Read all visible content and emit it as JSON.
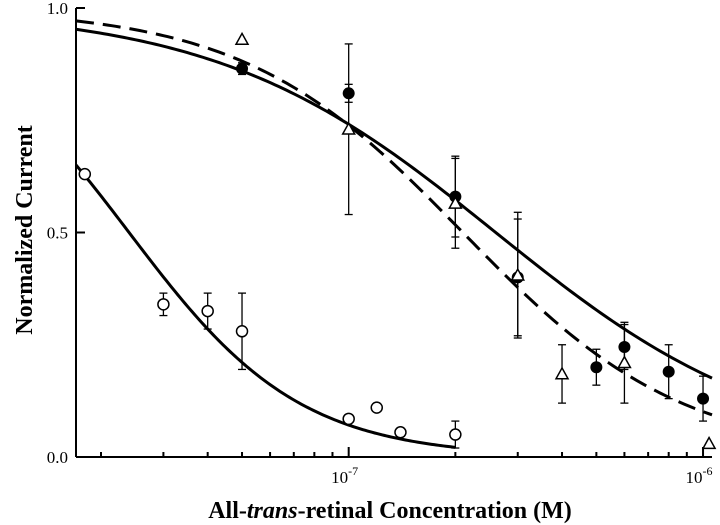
{
  "chart_data": {
    "type": "scatter",
    "x_scale": "log",
    "xlim": [
      1.7e-08,
      1.06e-06
    ],
    "ylim": [
      0,
      1.0
    ],
    "grid": false,
    "ylabel": "Normalized Current",
    "xlabel_parts": [
      "All-",
      "trans",
      "-retinal Concentration (M)"
    ],
    "x_ticks": [
      {
        "value": 1e-07,
        "base": "10",
        "exp": "-7"
      },
      {
        "value": 1e-06,
        "base": "10",
        "exp": "-6"
      }
    ],
    "y_ticks": [
      {
        "value": 0.0,
        "label": "0.0"
      },
      {
        "value": 0.5,
        "label": "0.5"
      },
      {
        "value": 1.0,
        "label": "1.0"
      }
    ],
    "series": [
      {
        "marker": "filled-circle",
        "points": [
          {
            "x": 5e-08,
            "y": 0.865,
            "err": 0.013
          },
          {
            "x": 1e-07,
            "y": 0.81,
            "err": 0.02
          },
          {
            "x": 2e-07,
            "y": 0.58,
            "err": 0.09
          },
          {
            "x": 3e-07,
            "y": 0.4,
            "err": 0.13
          },
          {
            "x": 5e-07,
            "y": 0.2,
            "err": 0.04
          },
          {
            "x": 6e-07,
            "y": 0.245,
            "err": 0.05
          },
          {
            "x": 8e-07,
            "y": 0.19,
            "err": 0.06
          },
          {
            "x": 1e-06,
            "y": 0.13,
            "err": 0.05
          }
        ],
        "fit": {
          "style": "solid",
          "top": 1.0,
          "bottom": 0.0,
          "ec50": 2.6e-07,
          "hill": 1.1,
          "x_from": 1.7e-08,
          "x_to": 1.06e-06
        }
      },
      {
        "marker": "open-triangle",
        "points": [
          {
            "x": 5e-08,
            "y": 0.93,
            "err": 0.0
          },
          {
            "x": 1e-07,
            "y": 0.73,
            "err": 0.19
          },
          {
            "x": 2e-07,
            "y": 0.565,
            "err": 0.1
          },
          {
            "x": 3e-07,
            "y": 0.405,
            "err": 0.14
          },
          {
            "x": 4e-07,
            "y": 0.185,
            "err": 0.065
          },
          {
            "x": 6e-07,
            "y": 0.21,
            "err": 0.09
          },
          {
            "x": 1.04e-06,
            "y": 0.03,
            "err": 0.0
          }
        ],
        "fit": {
          "style": "dashed",
          "top": 1.0,
          "bottom": 0.0,
          "ec50": 2.1e-07,
          "hill": 1.4,
          "x_from": 1.7e-08,
          "x_to": 1.06e-06
        }
      },
      {
        "marker": "open-circle",
        "points": [
          {
            "x": 1.8e-08,
            "y": 0.63,
            "err": 0.0
          },
          {
            "x": 3e-08,
            "y": 0.34,
            "err": 0.025
          },
          {
            "x": 4e-08,
            "y": 0.325,
            "err": 0.04
          },
          {
            "x": 5e-08,
            "y": 0.28,
            "err": 0.085
          },
          {
            "x": 1e-07,
            "y": 0.085,
            "err": 0.0
          },
          {
            "x": 1.2e-07,
            "y": 0.11,
            "err": 0.0
          },
          {
            "x": 1.4e-07,
            "y": 0.055,
            "err": 0.0
          },
          {
            "x": 2e-07,
            "y": 0.05,
            "err": 0.03
          }
        ],
        "fit": {
          "style": "solid",
          "top": 1.0,
          "bottom": 0.0,
          "ec50": 2.4e-08,
          "hill": 1.8,
          "x_from": 1.7e-08,
          "x_to": 2e-07
        }
      }
    ]
  }
}
